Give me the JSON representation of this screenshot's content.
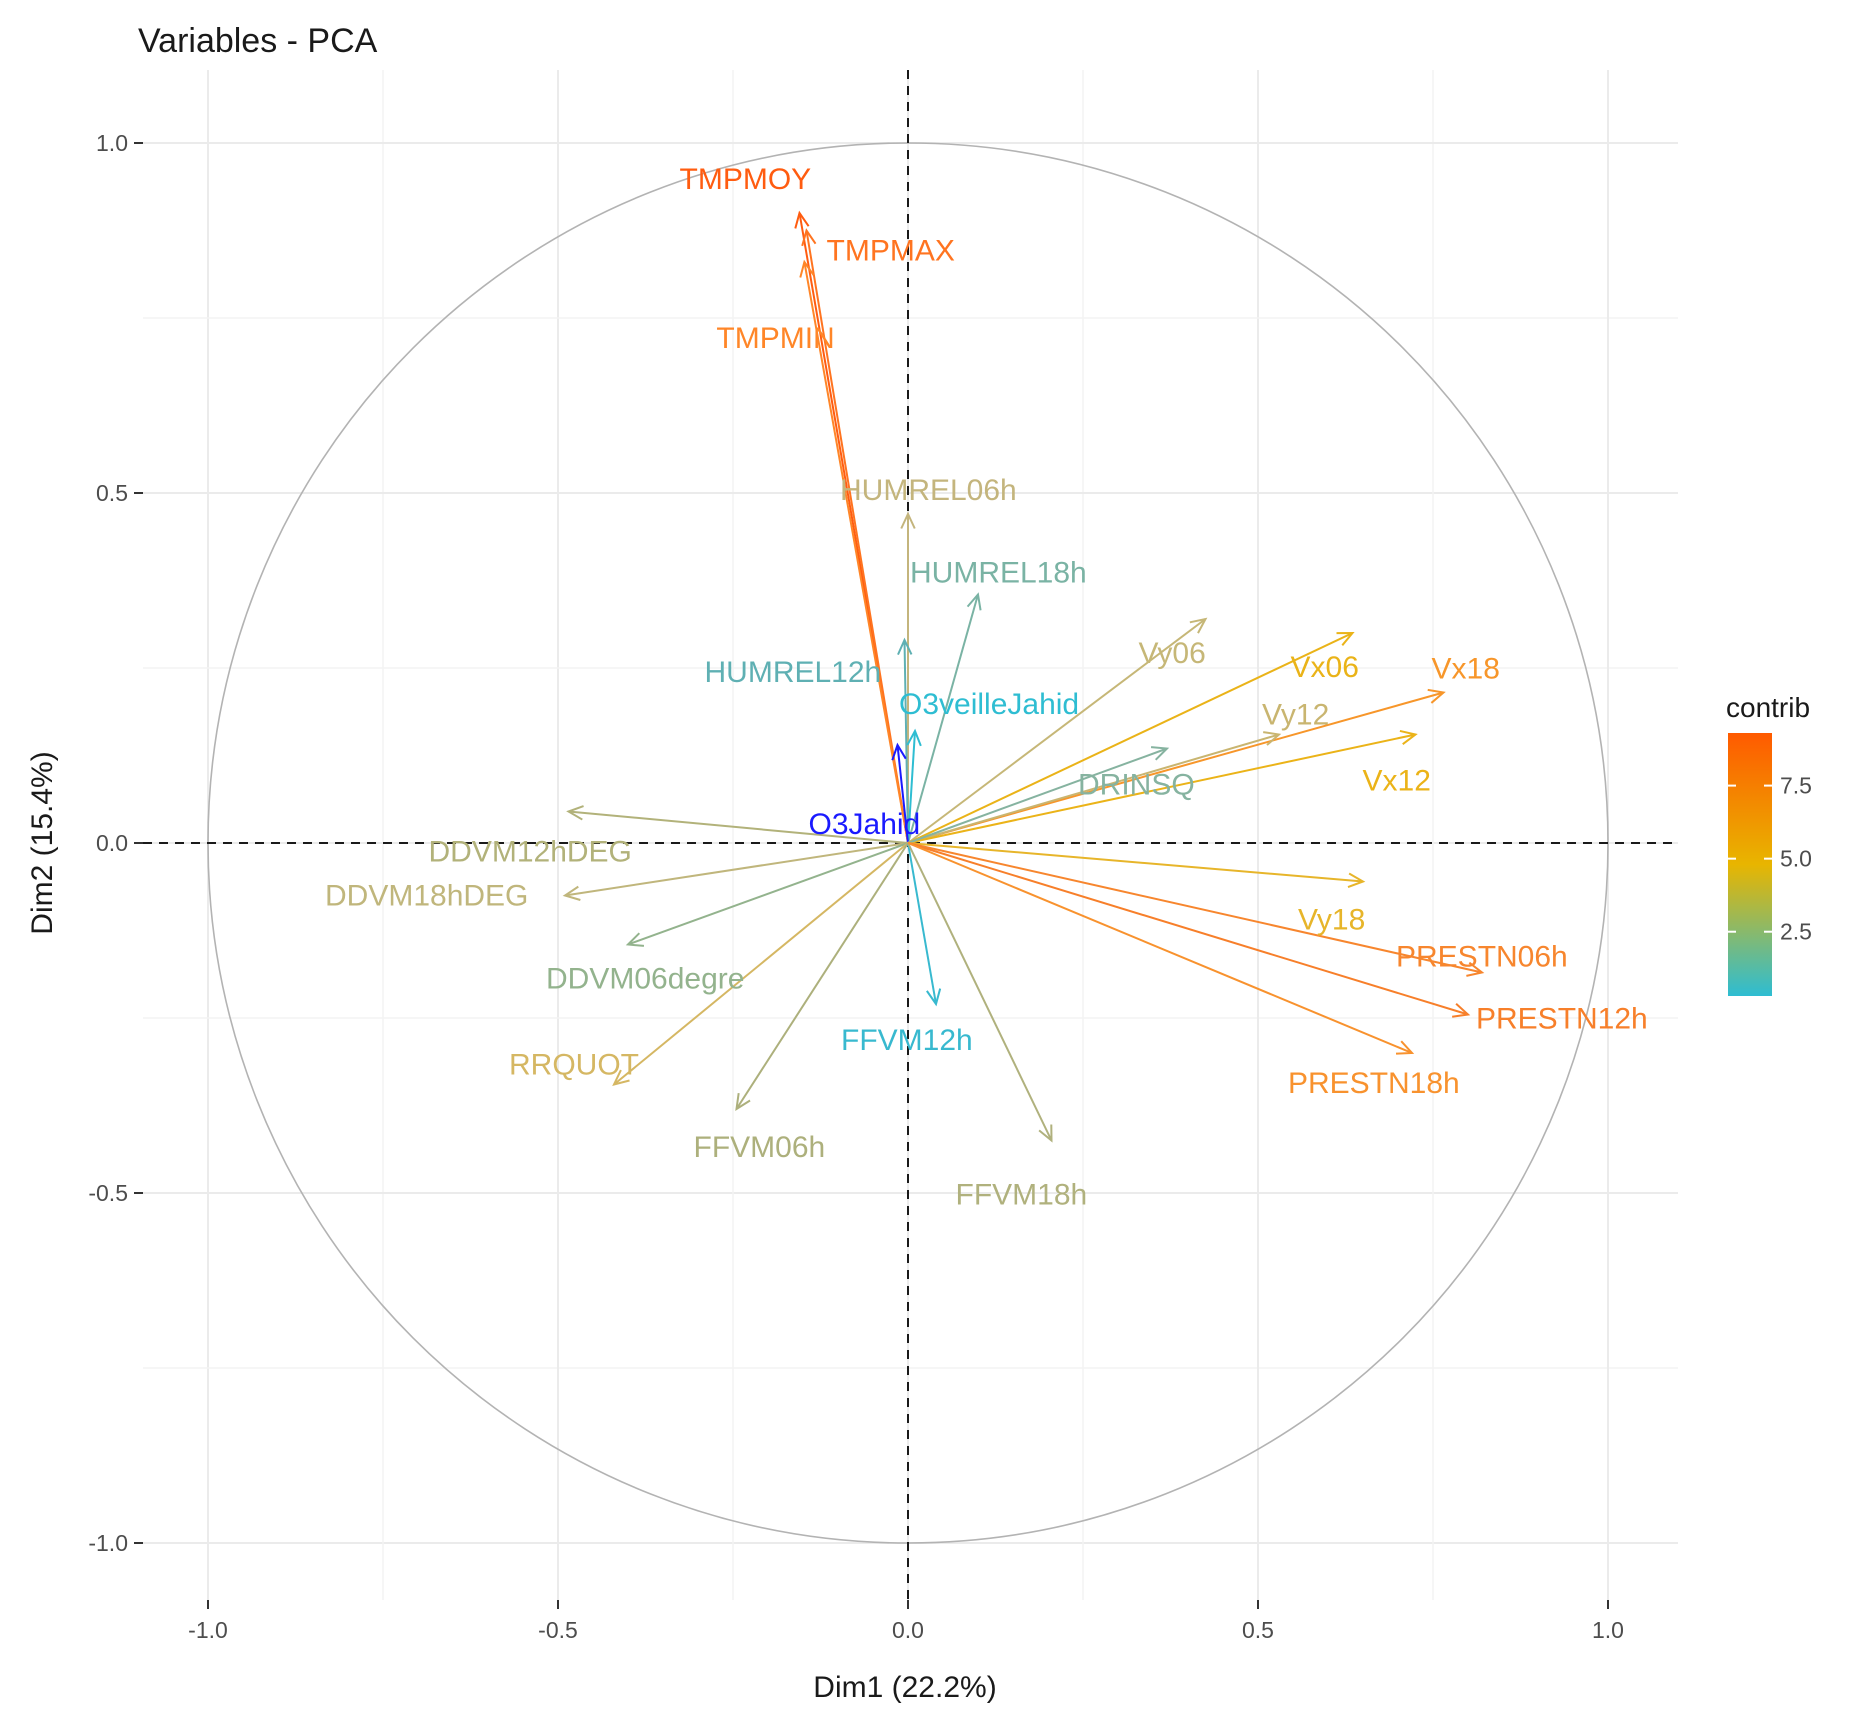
{
  "chart_data": {
    "type": "scatter",
    "subtype": "pca-variable-correlation-circle",
    "title": "Variables - PCA",
    "xlabel": "Dim1 (22.2%)",
    "ylabel": "Dim2 (15.4%)",
    "xlim": [
      -1.1,
      1.1
    ],
    "ylim": [
      -1.1,
      1.1
    ],
    "x_ticks": [
      -1.0,
      -0.5,
      0.0,
      0.5,
      1.0
    ],
    "x_tick_labels": [
      "-1.0",
      "-0.5",
      "0.0",
      "0.5",
      "1.0"
    ],
    "y_ticks": [
      -1.0,
      -0.5,
      0.0,
      0.5,
      1.0
    ],
    "y_tick_labels": [
      "-1.0",
      "-0.5",
      "0.0",
      "0.5",
      "1.0"
    ],
    "grid": true,
    "unit_circle_radius": 1.0,
    "legend": {
      "title": "contrib",
      "position": "right",
      "range": [
        0.3,
        9.3
      ],
      "ticks": [
        2.5,
        5.0,
        7.5
      ],
      "tick_labels": [
        "2.5",
        "5.0",
        "7.5"
      ],
      "gradient_colors": [
        "#2ebdd2",
        "#e8b500",
        "#ff5a00"
      ]
    },
    "variables": [
      {
        "name": "TMPMOY",
        "x": -0.155,
        "y": 0.9,
        "color": "#ff5c10"
      },
      {
        "name": "TMPMAX",
        "x": -0.145,
        "y": 0.875,
        "color": "#ff7420"
      },
      {
        "name": "TMPMIN",
        "x": -0.148,
        "y": 0.83,
        "color": "#ff8628"
      },
      {
        "name": "HUMREL06h",
        "x": 0.0,
        "y": 0.47,
        "color": "#c4b57d"
      },
      {
        "name": "HUMREL18h",
        "x": 0.1,
        "y": 0.355,
        "color": "#7ab3a4"
      },
      {
        "name": "HUMREL12h",
        "x": -0.005,
        "y": 0.29,
        "color": "#5fb0b3"
      },
      {
        "name": "O3veilleJahid",
        "x": 0.01,
        "y": 0.16,
        "color": "#2ebdd2"
      },
      {
        "name": "O3Jahid",
        "x": -0.015,
        "y": 0.14,
        "color": "#1a1aff"
      },
      {
        "name": "Vy06",
        "x": 0.425,
        "y": 0.32,
        "color": "#c6b777"
      },
      {
        "name": "Vx06",
        "x": 0.635,
        "y": 0.3,
        "color": "#eab318"
      },
      {
        "name": "Vx18",
        "x": 0.765,
        "y": 0.215,
        "color": "#f7962a"
      },
      {
        "name": "Vy12",
        "x": 0.53,
        "y": 0.155,
        "color": "#c9b570"
      },
      {
        "name": "Vx12",
        "x": 0.725,
        "y": 0.155,
        "color": "#ebb318"
      },
      {
        "name": "DRINSQ",
        "x": 0.37,
        "y": 0.135,
        "color": "#86b3a0"
      },
      {
        "name": "DDVM12hDEG",
        "x": -0.485,
        "y": 0.045,
        "color": "#b2b27a"
      },
      {
        "name": "DDVM18hDEG",
        "x": -0.49,
        "y": -0.075,
        "color": "#c0b67c"
      },
      {
        "name": "DDVM06degre",
        "x": -0.4,
        "y": -0.145,
        "color": "#93b38d"
      },
      {
        "name": "RRQUOT",
        "x": -0.42,
        "y": -0.345,
        "color": "#d5b763"
      },
      {
        "name": "FFVM06h",
        "x": -0.245,
        "y": -0.38,
        "color": "#adb07c"
      },
      {
        "name": "FFVM12h",
        "x": 0.04,
        "y": -0.23,
        "color": "#38b9cf"
      },
      {
        "name": "FFVM18h",
        "x": 0.205,
        "y": -0.425,
        "color": "#b0b17d"
      },
      {
        "name": "Vy18",
        "x": 0.65,
        "y": -0.055,
        "color": "#e7b52a"
      },
      {
        "name": "PRESTN06h",
        "x": 0.82,
        "y": -0.185,
        "color": "#f7862e"
      },
      {
        "name": "PRESTN12h",
        "x": 0.8,
        "y": -0.245,
        "color": "#f77f2a"
      },
      {
        "name": "PRESTN18h",
        "x": 0.72,
        "y": -0.3,
        "color": "#f8922e"
      }
    ]
  }
}
